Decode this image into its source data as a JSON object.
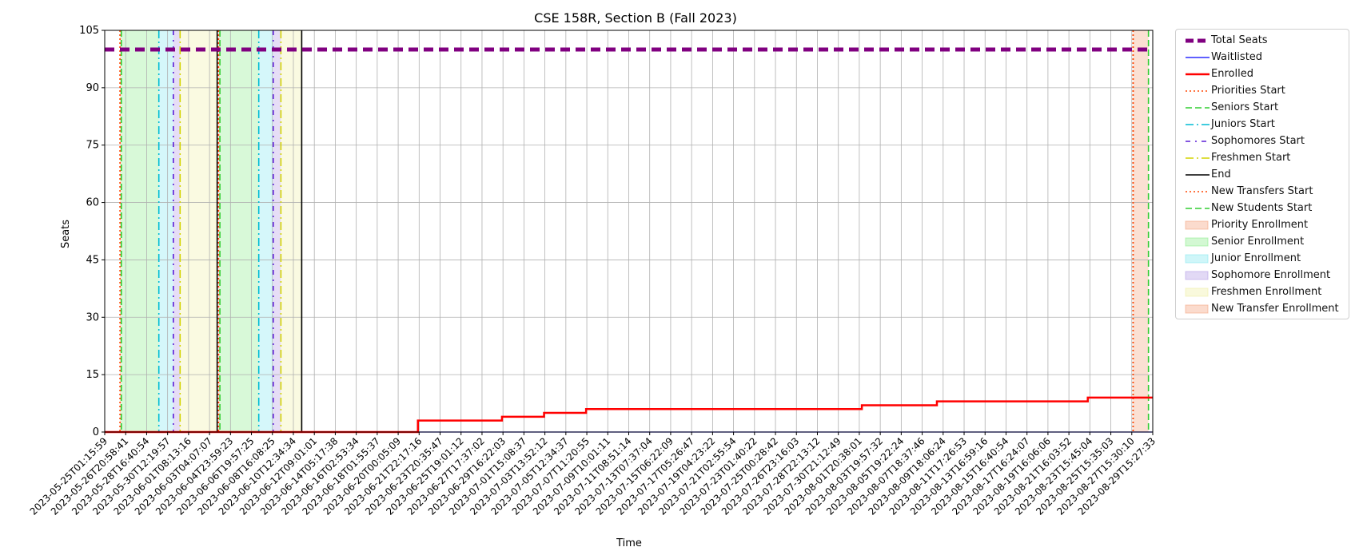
{
  "chart_data": {
    "type": "line",
    "title": "CSE 158R, Section B (Fall 2023)",
    "xlabel": "Time",
    "ylabel": "Seats",
    "ylim": [
      0,
      105
    ],
    "yticks": [
      0,
      15,
      30,
      45,
      60,
      75,
      90,
      105
    ],
    "grid": true,
    "legend_position": "outside-right",
    "x_tick_labels": [
      "2023-05-25T01:15:59",
      "2023-05-26T20:58:41",
      "2023-05-28T16:40:54",
      "2023-05-30T12:19:57",
      "2023-06-01T08:13:16",
      "2023-06-03T04:07:07",
      "2023-06-04T23:59:23",
      "2023-06-06T19:57:25",
      "2023-06-08T16:08:25",
      "2023-06-10T12:34:34",
      "2023-06-12T09:01:01",
      "2023-06-14T05:17:38",
      "2023-06-16T02:53:34",
      "2023-06-18T01:55:37",
      "2023-06-20T00:05:09",
      "2023-06-21T22:17:16",
      "2023-06-23T20:35:47",
      "2023-06-25T19:01:12",
      "2023-06-27T17:37:02",
      "2023-06-29T16:22:03",
      "2023-07-01T15:08:37",
      "2023-07-03T13:52:12",
      "2023-07-05T12:34:37",
      "2023-07-07T11:20:55",
      "2023-07-09T10:01:11",
      "2023-07-11T08:51:14",
      "2023-07-13T07:37:04",
      "2023-07-15T06:22:09",
      "2023-07-17T05:26:47",
      "2023-07-19T04:23:22",
      "2023-07-21T02:55:54",
      "2023-07-23T01:40:22",
      "2023-07-25T00:28:42",
      "2023-07-26T23:16:03",
      "2023-07-28T22:13:12",
      "2023-07-30T21:12:49",
      "2023-08-01T20:38:01",
      "2023-08-03T19:57:32",
      "2023-08-05T19:22:24",
      "2023-08-07T18:37:46",
      "2023-08-09T18:06:24",
      "2023-08-11T17:26:53",
      "2023-08-13T16:59:16",
      "2023-08-15T16:40:54",
      "2023-08-17T16:24:07",
      "2023-08-19T16:06:06",
      "2023-08-21T16:03:52",
      "2023-08-23T15:45:04",
      "2023-08-25T15:35:03",
      "2023-08-27T15:30:10",
      "2023-08-29T15:27:33"
    ],
    "x_range": [
      "2023-05-25T01:15:59",
      "2023-08-29T15:27:33"
    ],
    "series": [
      {
        "name": "Total Seats",
        "style": "dashed",
        "color": "#800080",
        "points": [
          [
            "2023-05-25T01:15:59",
            100
          ],
          [
            "2023-08-29T15:27:33",
            100
          ]
        ]
      },
      {
        "name": "Waitlisted",
        "style": "solid",
        "color": "#0000ff",
        "points": [
          [
            "2023-05-25T01:15:59",
            0
          ],
          [
            "2023-08-29T15:27:33",
            0
          ]
        ]
      },
      {
        "name": "Enrolled",
        "style": "step",
        "color": "#ff0000",
        "points": [
          [
            "2023-05-25T01:15:59",
            0
          ],
          [
            "2023-06-22T22:00:00",
            3
          ],
          [
            "2023-06-30T16:00:00",
            4
          ],
          [
            "2023-07-04T13:00:00",
            5
          ],
          [
            "2023-07-08T10:00:00",
            6
          ],
          [
            "2023-08-02T20:00:00",
            7
          ],
          [
            "2023-08-09T18:00:00",
            8
          ],
          [
            "2023-08-23T15:45:04",
            9
          ],
          [
            "2023-08-29T15:27:33",
            9
          ]
        ]
      }
    ],
    "events": [
      {
        "name": "Priorities Start",
        "style": "dotted",
        "color": "#ff4500",
        "times": [
          "2023-05-26T11:00:00",
          "2023-06-04T13:00:00",
          "2023-08-27T20:00:00"
        ]
      },
      {
        "name": "Seniors Start",
        "style": "dashed",
        "color": "#32cd32",
        "times": [
          "2023-05-26T14:00:00",
          "2023-06-04T16:00:00"
        ]
      },
      {
        "name": "Juniors Start",
        "style": "dashdot",
        "color": "#00bcd4",
        "times": [
          "2023-05-30T01:00:00",
          "2023-06-08T06:00:00"
        ]
      },
      {
        "name": "Sophomores Start",
        "style": "dashdot2",
        "color": "#5b1fd6",
        "times": [
          "2023-05-31T09:00:00",
          "2023-06-09T14:00:00"
        ]
      },
      {
        "name": "Freshmen Start",
        "style": "dashdot",
        "color": "#d4d400",
        "times": [
          "2023-06-01T00:00:00",
          "2023-06-10T07:00:00"
        ]
      },
      {
        "name": "End",
        "style": "solid",
        "color": "#000000",
        "times": [
          "2023-06-04T10:00:00",
          "2023-06-12T05:00:00"
        ]
      },
      {
        "name": "New Transfers Start",
        "style": "dotted",
        "color": "#ff4500",
        "times": [
          "2023-08-27T20:00:00"
        ]
      },
      {
        "name": "New Students Start",
        "style": "dashed",
        "color": "#32cd32",
        "times": [
          "2023-08-29T06:00:00"
        ]
      }
    ],
    "periods": [
      {
        "name": "Priority Enrollment",
        "color": "#f4a582",
        "ranges": [
          [
            "2023-05-26T11:00:00",
            "2023-05-26T14:00:00"
          ],
          [
            "2023-06-04T13:00:00",
            "2023-06-04T16:00:00"
          ]
        ]
      },
      {
        "name": "Senior Enrollment",
        "color": "#90ee90",
        "ranges": [
          [
            "2023-05-26T14:00:00",
            "2023-05-30T01:00:00"
          ],
          [
            "2023-06-04T16:00:00",
            "2023-06-08T06:00:00"
          ]
        ]
      },
      {
        "name": "Junior Enrollment",
        "color": "#87e8f0",
        "ranges": [
          [
            "2023-05-30T01:00:00",
            "2023-05-31T09:00:00"
          ],
          [
            "2023-06-08T06:00:00",
            "2023-06-09T14:00:00"
          ]
        ]
      },
      {
        "name": "Sophomore Enrollment",
        "color": "#b69fe6",
        "ranges": [
          [
            "2023-05-31T09:00:00",
            "2023-06-01T00:00:00"
          ],
          [
            "2023-06-09T14:00:00",
            "2023-06-10T07:00:00"
          ]
        ]
      },
      {
        "name": "Freshmen Enrollment",
        "color": "#f0f0a8",
        "ranges": [
          [
            "2023-06-01T00:00:00",
            "2023-06-04T10:00:00"
          ],
          [
            "2023-06-10T07:00:00",
            "2023-06-12T05:00:00"
          ]
        ]
      },
      {
        "name": "New Transfer Enrollment",
        "color": "#f4a582",
        "ranges": [
          [
            "2023-08-27T20:00:00",
            "2023-08-29T06:00:00"
          ]
        ]
      }
    ],
    "legend": [
      {
        "label": "Total Seats",
        "kind": "line",
        "color": "#800080",
        "style": "dashed-thick"
      },
      {
        "label": "Waitlisted",
        "kind": "line",
        "color": "#0000ff",
        "style": "solid-thin"
      },
      {
        "label": "Enrolled",
        "kind": "line",
        "color": "#ff0000",
        "style": "solid-thick"
      },
      {
        "label": "Priorities Start",
        "kind": "line",
        "color": "#ff4500",
        "style": "dotted"
      },
      {
        "label": "Seniors Start",
        "kind": "line",
        "color": "#32cd32",
        "style": "dashed"
      },
      {
        "label": "Juniors Start",
        "kind": "line",
        "color": "#00bcd4",
        "style": "dashdot"
      },
      {
        "label": "Sophomores Start",
        "kind": "line",
        "color": "#5b1fd6",
        "style": "dashdot2"
      },
      {
        "label": "Freshmen Start",
        "kind": "line",
        "color": "#d4d400",
        "style": "dashdot"
      },
      {
        "label": "End",
        "kind": "line",
        "color": "#000000",
        "style": "solid"
      },
      {
        "label": "New Transfers Start",
        "kind": "line",
        "color": "#ff4500",
        "style": "dotted"
      },
      {
        "label": "New Students Start",
        "kind": "line",
        "color": "#32cd32",
        "style": "dashed"
      },
      {
        "label": "Priority Enrollment",
        "kind": "patch",
        "color": "#f4a582"
      },
      {
        "label": "Senior Enrollment",
        "kind": "patch",
        "color": "#90ee90"
      },
      {
        "label": "Junior Enrollment",
        "kind": "patch",
        "color": "#87e8f0"
      },
      {
        "label": "Sophomore Enrollment",
        "kind": "patch",
        "color": "#b69fe6"
      },
      {
        "label": "Freshmen Enrollment",
        "kind": "patch",
        "color": "#f0f0a8"
      },
      {
        "label": "New Transfer Enrollment",
        "kind": "patch",
        "color": "#f4a582"
      }
    ]
  }
}
